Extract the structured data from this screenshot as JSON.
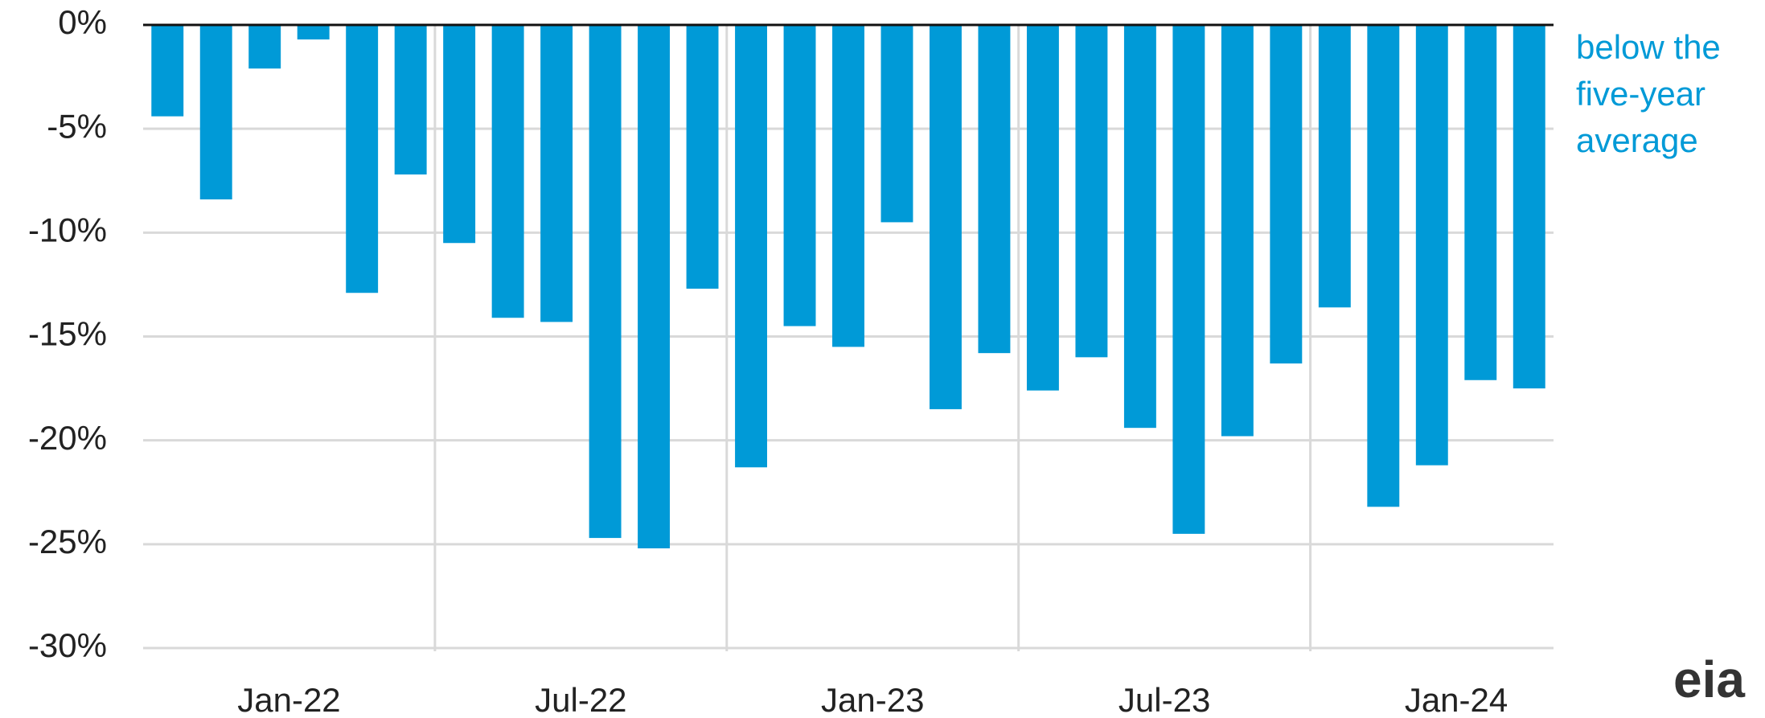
{
  "chart_data": {
    "type": "bar",
    "categories": [
      "Jan-22",
      null,
      null,
      null,
      null,
      null,
      "Jul-22",
      null,
      null,
      null,
      null,
      null,
      "Jan-23",
      null,
      null,
      null,
      null,
      null,
      "Jul-23",
      null,
      null,
      null,
      null,
      null,
      "Jan-24",
      null,
      null,
      null,
      null
    ],
    "values": [
      -4.4,
      -8.4,
      -2.1,
      -0.7,
      -12.9,
      -7.2,
      -10.5,
      -14.1,
      -14.3,
      -24.7,
      -25.2,
      -12.7,
      -21.3,
      -14.5,
      -15.5,
      -9.5,
      -18.5,
      -15.8,
      -17.6,
      -16.0,
      -19.4,
      -24.5,
      -19.8,
      -16.3,
      -13.6,
      -23.2,
      -21.2,
      -17.1,
      -17.5
    ],
    "color": "#009ad7",
    "ylim": [
      -30,
      0
    ],
    "yticks": [
      {
        "value": 0,
        "label": "0%"
      },
      {
        "value": -5,
        "label": "-5%"
      },
      {
        "value": -10,
        "label": "-10%"
      },
      {
        "value": -15,
        "label": "-15%"
      },
      {
        "value": -20,
        "label": "-20%"
      },
      {
        "value": -25,
        "label": "-25%"
      },
      {
        "value": -30,
        "label": "-30%"
      }
    ],
    "grid": true,
    "annotation": [
      "below the",
      "five-year",
      "average"
    ],
    "logo": "eia"
  }
}
